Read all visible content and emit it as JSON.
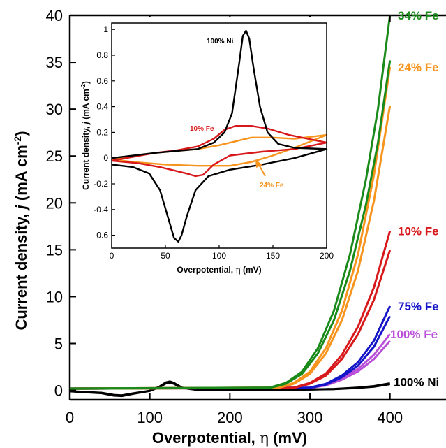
{
  "chart_data": [
    {
      "type": "line",
      "role": "main",
      "xlabel_main": "Overpotential, ",
      "xlabel_eta": "η",
      "xlabel_unit": " (mV)",
      "ylabel_main": "Current density, ",
      "ylabel_j": "j",
      "ylabel_unit": " (mA cm",
      "ylabel_exp": "-2",
      "ylabel_close": ")",
      "xlim": [
        0,
        470
      ],
      "ylim": [
        -1,
        40
      ],
      "xticks": [
        "0",
        "100",
        "200",
        "300",
        "400"
      ],
      "yticks": [
        "0",
        "5",
        "10",
        "15",
        "20",
        "25",
        "30",
        "35",
        "40"
      ],
      "series": [
        {
          "name": "34% Fe",
          "color": "#1a8a1a",
          "x": [
            0,
            250,
            270,
            290,
            310,
            330,
            350,
            370,
            385,
            400
          ],
          "y": [
            0.2,
            0.3,
            0.8,
            2.0,
            4.5,
            8.5,
            14.5,
            22.5,
            30,
            40
          ]
        },
        {
          "name": "24% Fe",
          "color": "#f7941d",
          "x": [
            0,
            260,
            280,
            300,
            320,
            340,
            360,
            380,
            400
          ],
          "y": [
            0.2,
            0.3,
            0.8,
            2.0,
            4.5,
            8.5,
            14.5,
            23,
            34.5
          ]
        },
        {
          "name": "10% Fe",
          "color": "#d7191c",
          "x": [
            0,
            280,
            300,
            320,
            340,
            360,
            380,
            400
          ],
          "y": [
            0.2,
            0.3,
            0.8,
            1.8,
            3.8,
            6.8,
            11,
            17
          ]
        },
        {
          "name": "75% Fe",
          "color": "#1414c8",
          "x": [
            0,
            300,
            320,
            340,
            360,
            380,
            400
          ],
          "y": [
            0.2,
            0.3,
            0.7,
            1.6,
            3.0,
            5.3,
            9
          ]
        },
        {
          "name": "100% Fe",
          "color": "#b94fd9",
          "x": [
            0,
            300,
            320,
            340,
            360,
            380,
            400
          ],
          "y": [
            0.2,
            0.3,
            0.6,
            1.3,
            2.3,
            3.8,
            6
          ]
        },
        {
          "name": "100% Ni",
          "color": "#000000",
          "x": [
            0,
            20,
            40,
            55,
            65,
            80,
            100,
            112,
            120,
            125,
            130,
            140,
            160,
            200,
            260,
            300,
            330,
            360,
            380,
            400
          ],
          "y": [
            -0.1,
            -0.2,
            -0.3,
            -0.55,
            -0.6,
            -0.35,
            -0.05,
            0.4,
            0.85,
            0.95,
            0.8,
            0.3,
            0.05,
            0.05,
            0.05,
            0.1,
            0.15,
            0.3,
            0.45,
            0.75
          ]
        }
      ]
    },
    {
      "type": "line",
      "role": "inset",
      "xlabel_main": "Overpotential, ",
      "xlabel_eta": "η",
      "xlabel_unit": " (mV)",
      "ylabel_main": "Current density, ",
      "ylabel_j": "j",
      "ylabel_unit": " (mA cm",
      "ylabel_exp": "-2",
      "ylabel_close": ")",
      "xlim": [
        0,
        200
      ],
      "ylim": [
        -0.7,
        1.05
      ],
      "xticks": [
        "0",
        "50",
        "100",
        "150",
        "200"
      ],
      "yticks": [
        "-0.6",
        "-0.4",
        "-0.2",
        "0",
        "0.2",
        "0.4",
        "0.6",
        "0.8",
        "1"
      ],
      "labels": {
        "ni": "100% Ni",
        "fe10": "10% Fe",
        "fe24": "24% Fe"
      },
      "series": [
        {
          "name": "100% Ni",
          "color": "#000000",
          "x": [
            0,
            40,
            80,
            95,
            105,
            112,
            118,
            122,
            125,
            128,
            132,
            138,
            145,
            155,
            170,
            200,
            170,
            140,
            110,
            90,
            78,
            70,
            65,
            62,
            58,
            52,
            45,
            35,
            20,
            0
          ],
          "y": [
            0.0,
            0.04,
            0.07,
            0.12,
            0.2,
            0.35,
            0.7,
            0.95,
            0.99,
            0.93,
            0.7,
            0.4,
            0.2,
            0.11,
            0.08,
            0.07,
            0.0,
            -0.05,
            -0.09,
            -0.14,
            -0.25,
            -0.45,
            -0.6,
            -0.65,
            -0.62,
            -0.45,
            -0.25,
            -0.12,
            -0.07,
            -0.05
          ]
        },
        {
          "name": "10% Fe",
          "color": "#d7191c",
          "x": [
            0,
            40,
            60,
            80,
            95,
            105,
            115,
            130,
            145,
            165,
            200,
            170,
            140,
            110,
            95,
            85,
            78,
            70,
            60,
            45,
            25,
            0
          ],
          "y": [
            -0.02,
            0.04,
            0.06,
            0.09,
            0.15,
            0.22,
            0.25,
            0.25,
            0.23,
            0.18,
            0.12,
            0.07,
            0.05,
            0.02,
            -0.05,
            -0.13,
            -0.14,
            -0.12,
            -0.1,
            -0.07,
            -0.04,
            -0.02
          ]
        },
        {
          "name": "24% Fe",
          "color": "#f7941d",
          "x": [
            0,
            40,
            80,
            100,
            115,
            130,
            150,
            170,
            200,
            170,
            150,
            130,
            110,
            80,
            50,
            20,
            0
          ],
          "y": [
            -0.01,
            0.04,
            0.07,
            0.1,
            0.13,
            0.16,
            0.16,
            0.15,
            0.18,
            0.08,
            0.02,
            -0.03,
            -0.06,
            -0.06,
            -0.05,
            -0.03,
            -0.01
          ]
        }
      ]
    }
  ]
}
